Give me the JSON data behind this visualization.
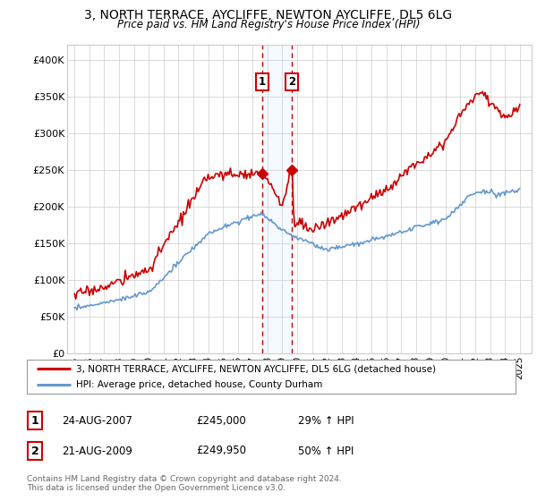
{
  "title": "3, NORTH TERRACE, AYCLIFFE, NEWTON AYCLIFFE, DL5 6LG",
  "subtitle": "Price paid vs. HM Land Registry's House Price Index (HPI)",
  "legend_line1": "3, NORTH TERRACE, AYCLIFFE, NEWTON AYCLIFFE, DL5 6LG (detached house)",
  "legend_line2": "HPI: Average price, detached house, County Durham",
  "transaction1_date": "24-AUG-2007",
  "transaction1_price": "£245,000",
  "transaction1_hpi": "29% ↑ HPI",
  "transaction2_date": "21-AUG-2009",
  "transaction2_price": "£249,950",
  "transaction2_hpi": "50% ↑ HPI",
  "footer": "Contains HM Land Registry data © Crown copyright and database right 2024.\nThis data is licensed under the Open Government Licence v3.0.",
  "red_color": "#cc0000",
  "blue_color": "#6699cc",
  "transaction1_x": 2007.646,
  "transaction2_x": 2009.646,
  "transaction1_y": 245000,
  "transaction2_y": 249950,
  "ylim_min": 0,
  "ylim_max": 420000,
  "xlim_min": 1994.5,
  "xlim_max": 2025.8,
  "yticks": [
    0,
    50000,
    100000,
    150000,
    200000,
    250000,
    300000,
    350000,
    400000
  ],
  "ytick_labels": [
    "£0",
    "£50K",
    "£100K",
    "£150K",
    "£200K",
    "£250K",
    "£300K",
    "£350K",
    "£400K"
  ],
  "xticks": [
    1995,
    1996,
    1997,
    1998,
    1999,
    2000,
    2001,
    2002,
    2003,
    2004,
    2005,
    2006,
    2007,
    2008,
    2009,
    2010,
    2011,
    2012,
    2013,
    2014,
    2015,
    2016,
    2017,
    2018,
    2019,
    2020,
    2021,
    2022,
    2023,
    2024,
    2025
  ],
  "bg_color": "#f8f8f8",
  "plot_bg_color": "#ffffff"
}
